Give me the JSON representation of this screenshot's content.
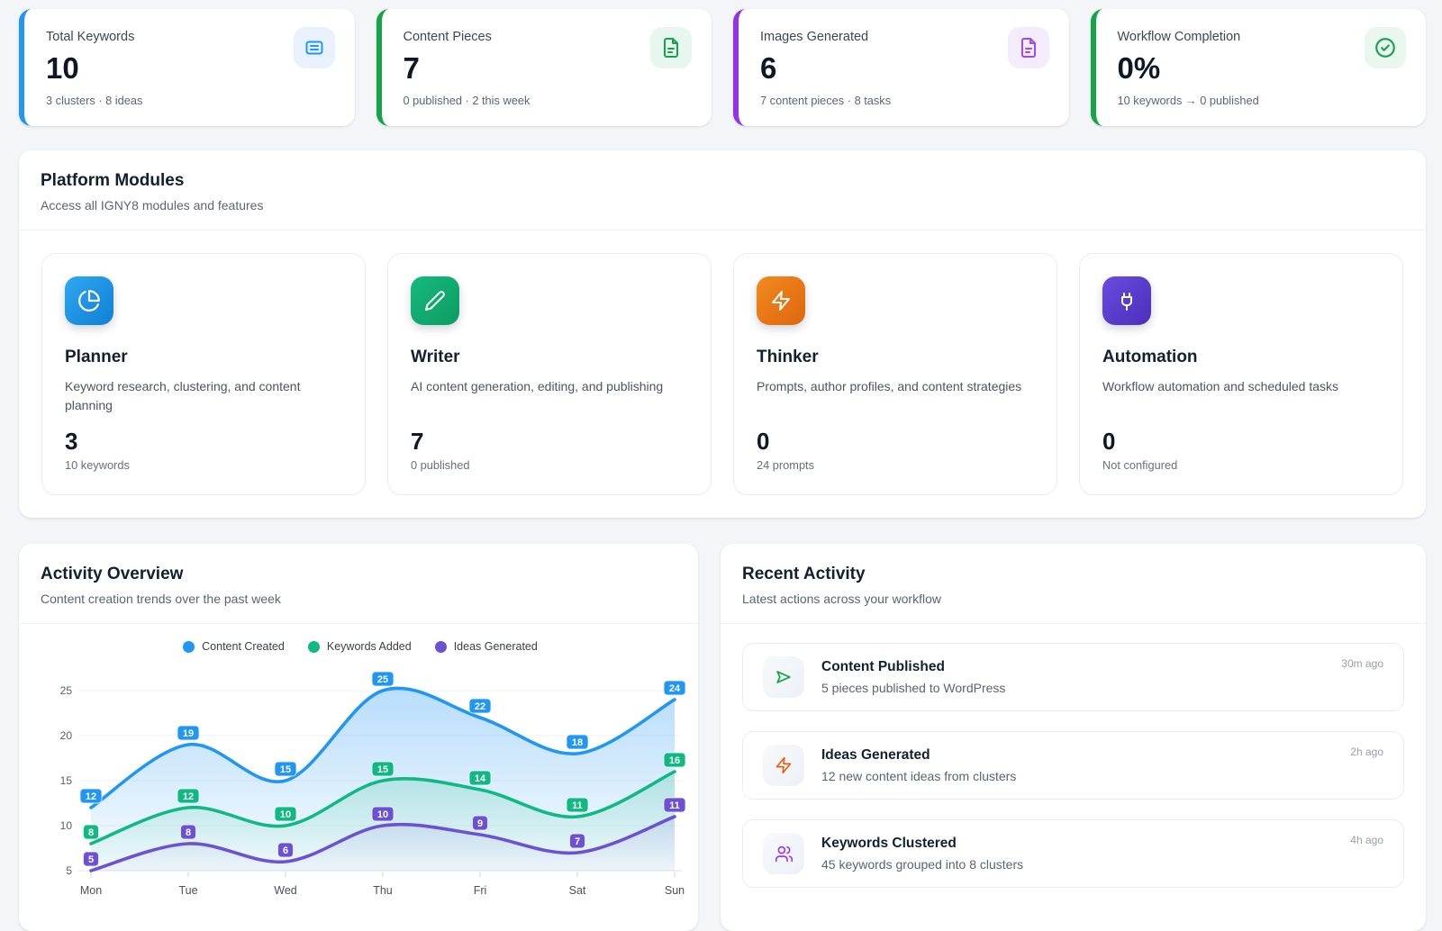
{
  "stats": {
    "cards": [
      {
        "label": "Total Keywords",
        "value": "10",
        "sub": "3 clusters · 8 ideas",
        "icon": "list-icon",
        "accent": "#2196f3"
      },
      {
        "label": "Content Pieces",
        "value": "7",
        "sub": "0 published · 2 this week",
        "icon": "document-icon",
        "accent": "#16a34a"
      },
      {
        "label": "Images Generated",
        "value": "6",
        "sub": "7 content pieces · 8 tasks",
        "icon": "document-icon",
        "accent": "#9333ea"
      },
      {
        "label": "Workflow Completion",
        "value": "0%",
        "sub": "10 keywords → 0 published",
        "icon": "check-circle-icon",
        "accent": "#16a34a"
      }
    ]
  },
  "modules": {
    "title": "Platform Modules",
    "subtitle": "Access all IGNY8 modules and features",
    "cards": [
      {
        "title": "Planner",
        "desc": "Keyword research, clustering, and content planning",
        "count": "3",
        "sub": "10 keywords",
        "icon": "pie-chart-icon",
        "accent": "#1b8fe0"
      },
      {
        "title": "Writer",
        "desc": "AI content generation, editing, and publishing",
        "count": "7",
        "sub": "0 published",
        "icon": "pencil-icon",
        "accent": "#10a96e"
      },
      {
        "title": "Thinker",
        "desc": "Prompts, author profiles, and content strategies",
        "count": "0",
        "sub": "24 prompts",
        "icon": "zap-icon",
        "accent": "#e87615"
      },
      {
        "title": "Automation",
        "desc": "Workflow automation and scheduled tasks",
        "count": "0",
        "sub": "Not configured",
        "icon": "plug-icon",
        "accent": "#5b3dd0"
      }
    ]
  },
  "activity_overview": {
    "title": "Activity Overview",
    "subtitle": "Content creation trends over the past week"
  },
  "chart_data": {
    "type": "line",
    "x": [
      "Mon",
      "Tue",
      "Wed",
      "Thu",
      "Fri",
      "Sat",
      "Sun"
    ],
    "series": [
      {
        "name": "Content Created",
        "color": "#2196f3",
        "values": [
          12,
          19,
          15,
          25,
          22,
          18,
          24
        ]
      },
      {
        "name": "Keywords Added",
        "color": "#10b981",
        "values": [
          8,
          12,
          10,
          15,
          14,
          11,
          16
        ]
      },
      {
        "name": "Ideas Generated",
        "color": "#6d51d4",
        "values": [
          5,
          8,
          6,
          10,
          9,
          7,
          11
        ]
      }
    ],
    "ylim": [
      5,
      25
    ],
    "yticks": [
      5,
      10,
      15,
      20,
      25
    ],
    "grid": true,
    "area": true,
    "smooth": true,
    "point_labels": true,
    "legend_position": "top"
  },
  "recent_activity": {
    "title": "Recent Activity",
    "subtitle": "Latest actions across your workflow",
    "items": [
      {
        "title": "Content Published",
        "desc": "5 pieces published to WordPress",
        "time": "30m ago",
        "icon": "send-icon",
        "color": "#16a34a"
      },
      {
        "title": "Ideas Generated",
        "desc": "12 new content ideas from clusters",
        "time": "2h ago",
        "icon": "zap-icon",
        "color": "#ea580c"
      },
      {
        "title": "Keywords Clustered",
        "desc": "45 keywords grouped into 8 clusters",
        "time": "4h ago",
        "icon": "users-icon",
        "color": "#9d3be0"
      }
    ]
  }
}
